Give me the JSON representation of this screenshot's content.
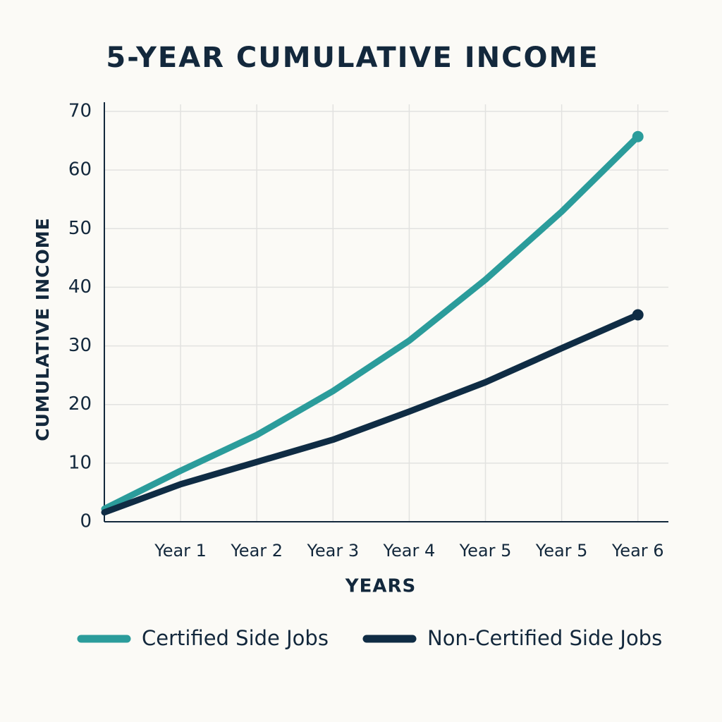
{
  "chart_data": {
    "type": "line",
    "title": "5-YEAR CUMULATIVE INCOME",
    "x_label": "YEARS",
    "y_label": "CUMULATIVE INCOME",
    "categories": [
      null,
      "Year 1",
      "Year 2",
      "Year 3",
      "Year 4",
      "Year 5",
      "Year 5",
      "Year 6"
    ],
    "series": [
      {
        "name": "Certified Side Jobs",
        "color": "#2b9c9b",
        "values": [
          2.2,
          8.7,
          14.8,
          22.3,
          30.9,
          41.3,
          52.9,
          65.7
        ]
      },
      {
        "name": "Non-Certified Side Jobs",
        "color": "#0f2c44",
        "values": [
          1.6,
          6.4,
          10.2,
          14.0,
          18.8,
          23.8,
          29.6,
          35.3
        ]
      }
    ],
    "ylim": [
      0,
      70
    ],
    "yticks": [
      0,
      10,
      20,
      30,
      40,
      50,
      60,
      70
    ],
    "grid": true
  }
}
